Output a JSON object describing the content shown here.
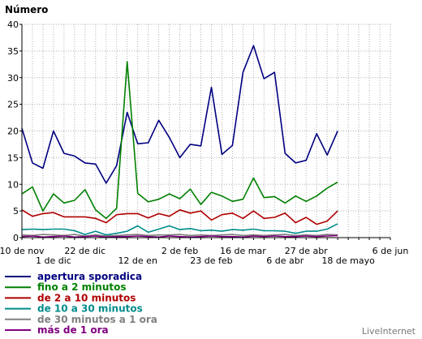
{
  "chart_data": {
    "type": "line",
    "ylabel": "Número",
    "ylim": [
      0,
      40
    ],
    "yticks": [
      0,
      5,
      10,
      15,
      20,
      25,
      30,
      35,
      40
    ],
    "grid": true,
    "legend_placement": "bottom-left",
    "x_count": 36,
    "x_ticks_row1": [
      {
        "i": 0,
        "label": "10 de nov"
      },
      {
        "i": 6,
        "label": "22 de dic"
      },
      {
        "i": 15,
        "label": "2 de feb"
      },
      {
        "i": 21,
        "label": "16 de mar"
      },
      {
        "i": 27,
        "label": "27 de abr"
      },
      {
        "i": 35,
        "label": "6 de jun"
      }
    ],
    "x_ticks_row2": [
      {
        "i": 3,
        "label": "1 de dic"
      },
      {
        "i": 11,
        "label": "12 de en"
      },
      {
        "i": 18,
        "label": "23 de feb"
      },
      {
        "i": 25,
        "label": "6 de abr"
      },
      {
        "i": 31,
        "label": "18 de mayo"
      }
    ],
    "series": [
      {
        "name": "apertura sporadica",
        "color": "#000080",
        "values": [
          20.5,
          14,
          13,
          20,
          15.8,
          15.3,
          14,
          13.8,
          10.2,
          13.5,
          23.5,
          17.6,
          17.8,
          22,
          18.8,
          15,
          17.5,
          17.2,
          28.2,
          15.6,
          17.3,
          31,
          36,
          29.8,
          31,
          15.8,
          14,
          14.5,
          19.5,
          15.5,
          20,
          null,
          null,
          null,
          null,
          null
        ]
      },
      {
        "name": "fino a 2 minutos",
        "color": "#008000",
        "values": [
          8.2,
          9.5,
          5,
          8.2,
          6.5,
          7,
          9,
          5.2,
          3.6,
          5.5,
          33,
          8.3,
          6.7,
          7.2,
          8.2,
          7.3,
          9.1,
          6.2,
          8.5,
          7.8,
          6.8,
          7.2,
          11.2,
          7.5,
          7.7,
          6.5,
          7.8,
          6.8,
          7.8,
          9.3,
          10.4,
          null,
          null,
          null,
          null,
          null
        ]
      },
      {
        "name": "de 2 a 10 minutos",
        "color": "#b00000",
        "values": [
          5.2,
          4,
          4.5,
          4.7,
          3.9,
          3.9,
          3.9,
          3.6,
          2.8,
          4.3,
          4.5,
          4.5,
          3.7,
          4.5,
          4,
          5.2,
          4.6,
          5,
          3.3,
          4.3,
          4.6,
          3.6,
          5,
          3.6,
          3.8,
          4.6,
          2.8,
          3.8,
          2.5,
          3.1,
          5,
          null,
          null,
          null,
          null,
          null
        ]
      },
      {
        "name": "de 10 a 30 minutos",
        "color": "#008b8b",
        "values": [
          1.5,
          1.6,
          1.5,
          1.6,
          1.6,
          1.3,
          0.6,
          1.2,
          0.5,
          0.8,
          1.2,
          2.2,
          1,
          1.6,
          2.2,
          1.5,
          1.7,
          1.3,
          1.4,
          1.2,
          1.5,
          1.4,
          1.6,
          1.3,
          1.3,
          1.2,
          0.8,
          1.2,
          1.2,
          1.6,
          2.6,
          null,
          null,
          null,
          null,
          null
        ]
      },
      {
        "name": "de 30 minutos a 1 ora",
        "color": "#808080",
        "values": [
          0.5,
          0.4,
          0.6,
          0.5,
          0.4,
          0.6,
          0.3,
          0.5,
          0.3,
          0.4,
          0.5,
          0.6,
          0.4,
          0.5,
          0.5,
          0.6,
          0.4,
          0.5,
          0.4,
          0.5,
          0.6,
          0.4,
          0.5,
          0.4,
          0.5,
          0.6,
          0.4,
          0.5,
          0.4,
          0.6,
          0.5,
          null,
          null,
          null,
          null,
          null
        ]
      },
      {
        "name": "más de 1 ora",
        "color": "#800080",
        "values": [
          0.2,
          0.3,
          0.1,
          0.2,
          0.3,
          0.1,
          0.2,
          0.3,
          0.1,
          0.2,
          0.2,
          0.3,
          0.2,
          0.1,
          0.3,
          0.2,
          0.1,
          0.2,
          0.3,
          0.2,
          0.2,
          0.1,
          0.3,
          0.2,
          0.3,
          0.2,
          0.2,
          0.3,
          0.2,
          0.3,
          0.4,
          null,
          null,
          null,
          null,
          null
        ]
      }
    ]
  },
  "credit": "LiveInternet"
}
